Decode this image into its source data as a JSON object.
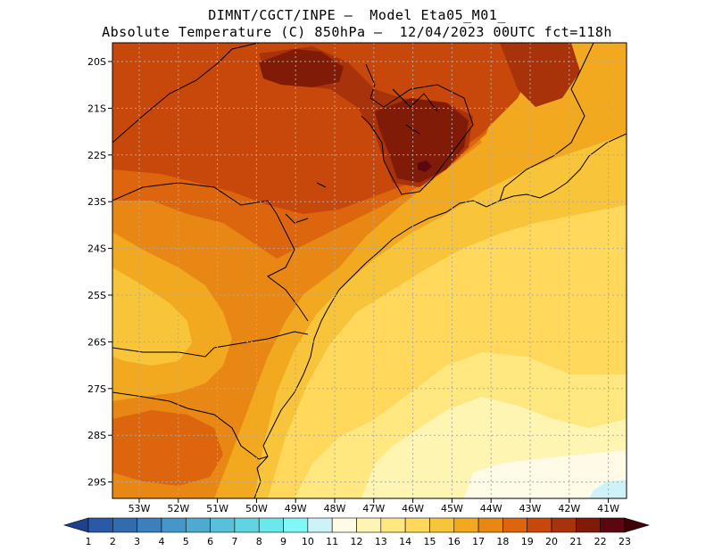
{
  "title_line1": "DIMNT/CGCT/INPE –  Model Eta05_M01_",
  "title_line2": "Absolute Temperature (C) 850hPa –  12/04/2023 00UTC fct=118h",
  "lat_labels": [
    "20S",
    "21S",
    "22S",
    "23S",
    "24S",
    "25S",
    "26S",
    "27S",
    "28S",
    "29S"
  ],
  "lon_labels": [
    "53W",
    "52W",
    "51W",
    "50W",
    "49W",
    "48W",
    "47W",
    "46W",
    "45W",
    "44W",
    "43W",
    "42W",
    "41W"
  ],
  "colorbar": {
    "labels": [
      "1",
      "2",
      "3",
      "4",
      "5",
      "6",
      "7",
      "8",
      "9",
      "10",
      "11",
      "12",
      "13",
      "14",
      "15",
      "16",
      "17",
      "18",
      "19",
      "20",
      "21",
      "22",
      "23"
    ],
    "colors": [
      "#1f3f8f",
      "#2a5aa5",
      "#326cb0",
      "#3b80bd",
      "#4497c8",
      "#4dabd2",
      "#57c0da",
      "#5fd4e2",
      "#6ae8ec",
      "#7ff8f6",
      "#cdf2f8",
      "#fffbe6",
      "#fff5b3",
      "#ffe880",
      "#ffd85c",
      "#f8c43a",
      "#f2a91f",
      "#e88713",
      "#dc650d",
      "#c8480b",
      "#a83209",
      "#801b08",
      "#5c0710",
      "#3d0407"
    ]
  },
  "map_colors": {
    "t21": "#a83209",
    "t20": "#c8480b",
    "t19": "#dc650d",
    "t18": "#e88713",
    "t17": "#f2a91f",
    "t16": "#f8c43a",
    "t15": "#ffd85c",
    "t14": "#ffe880",
    "t13": "#fff5b3",
    "t12": "#fffbe6",
    "t11": "#cdf2f8",
    "t22": "#801b08",
    "t23": "#5c0710"
  }
}
